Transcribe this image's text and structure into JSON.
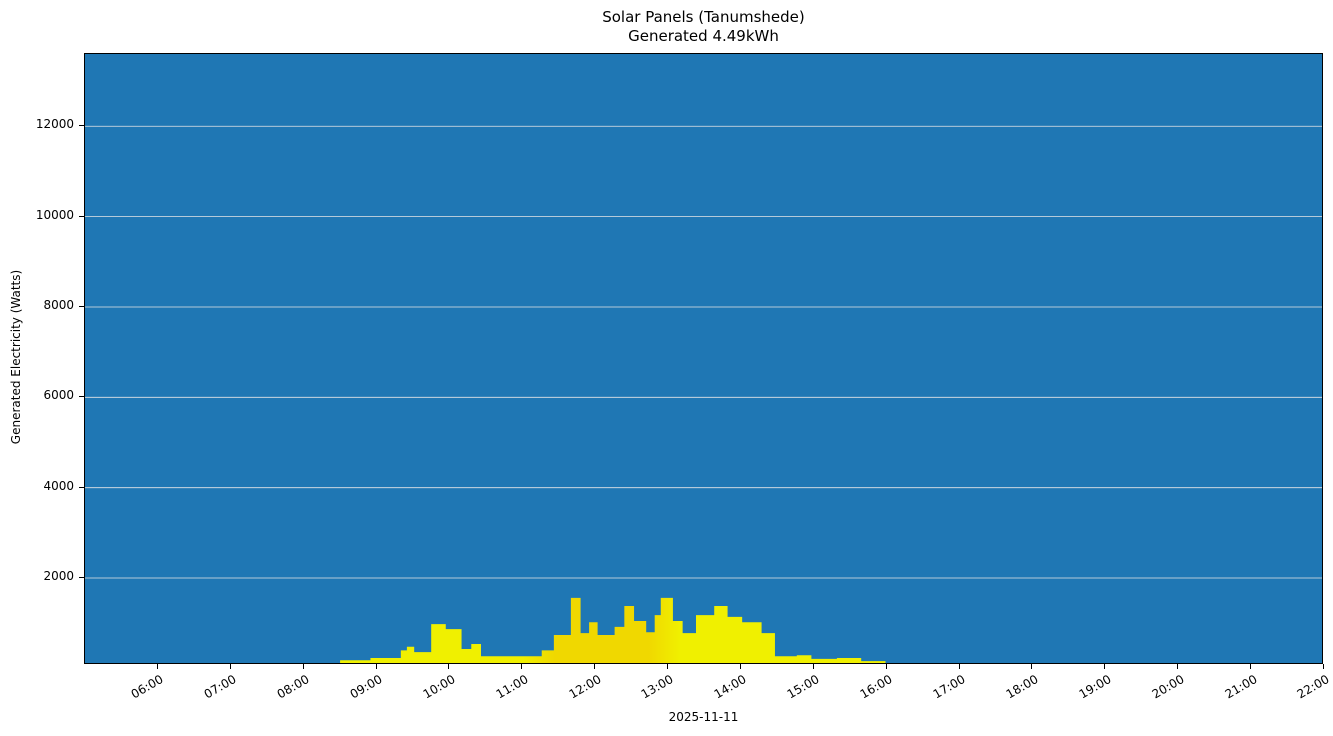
{
  "chart": {
    "title_line1": "Solar Panels (Tanumshede)",
    "title_line2": "Generated 4.49kWh",
    "xlabel": "2025-11-11",
    "ylabel": "Generated Electricity (Watts)",
    "background_color": "#1f77b4",
    "fill_color": "#f0f000",
    "fill_color_dark": "#f0d800",
    "grid_color": "#e6e6e6"
  },
  "chart_data": {
    "type": "area",
    "title": "Solar Panels (Tanumshede)\nGenerated 4.49kWh",
    "xlabel": "2025-11-11",
    "ylabel": "Generated Electricity (Watts)",
    "ylim": [
      75,
      13600
    ],
    "xlim": [
      "05:00",
      "22:00"
    ],
    "yticks": [
      2000,
      4000,
      6000,
      8000,
      10000,
      12000
    ],
    "xticks": [
      "06:00",
      "07:00",
      "08:00",
      "09:00",
      "10:00",
      "11:00",
      "12:00",
      "13:00",
      "14:00",
      "15:00",
      "16:00",
      "17:00",
      "18:00",
      "19:00",
      "20:00",
      "21:00",
      "22:00"
    ],
    "grid": "horizontal",
    "legend": null,
    "x": [
      "08:00",
      "08:30",
      "08:55",
      "09:20",
      "09:25",
      "09:31",
      "09:45",
      "09:57",
      "10:10",
      "10:18",
      "10:26",
      "11:00",
      "11:16",
      "11:26",
      "11:40",
      "11:48",
      "11:55",
      "12:02",
      "12:16",
      "12:24",
      "12:32",
      "12:42",
      "12:49",
      "12:54",
      "13:04",
      "13:12",
      "13:23",
      "13:38",
      "13:49",
      "14:01",
      "14:09",
      "14:17",
      "14:28",
      "14:46",
      "14:58",
      "15:19",
      "15:39",
      "15:59",
      "16:16",
      "16:34"
    ],
    "values": [
      100,
      180,
      230,
      400,
      480,
      360,
      980,
      870,
      430,
      540,
      270,
      270,
      400,
      740,
      1560,
      780,
      1020,
      740,
      920,
      1380,
      1050,
      800,
      1180,
      1560,
      1050,
      780,
      1180,
      1380,
      1140,
      1020,
      1020,
      780,
      270,
      290,
      210,
      230,
      160,
      100,
      75,
      95
    ]
  }
}
